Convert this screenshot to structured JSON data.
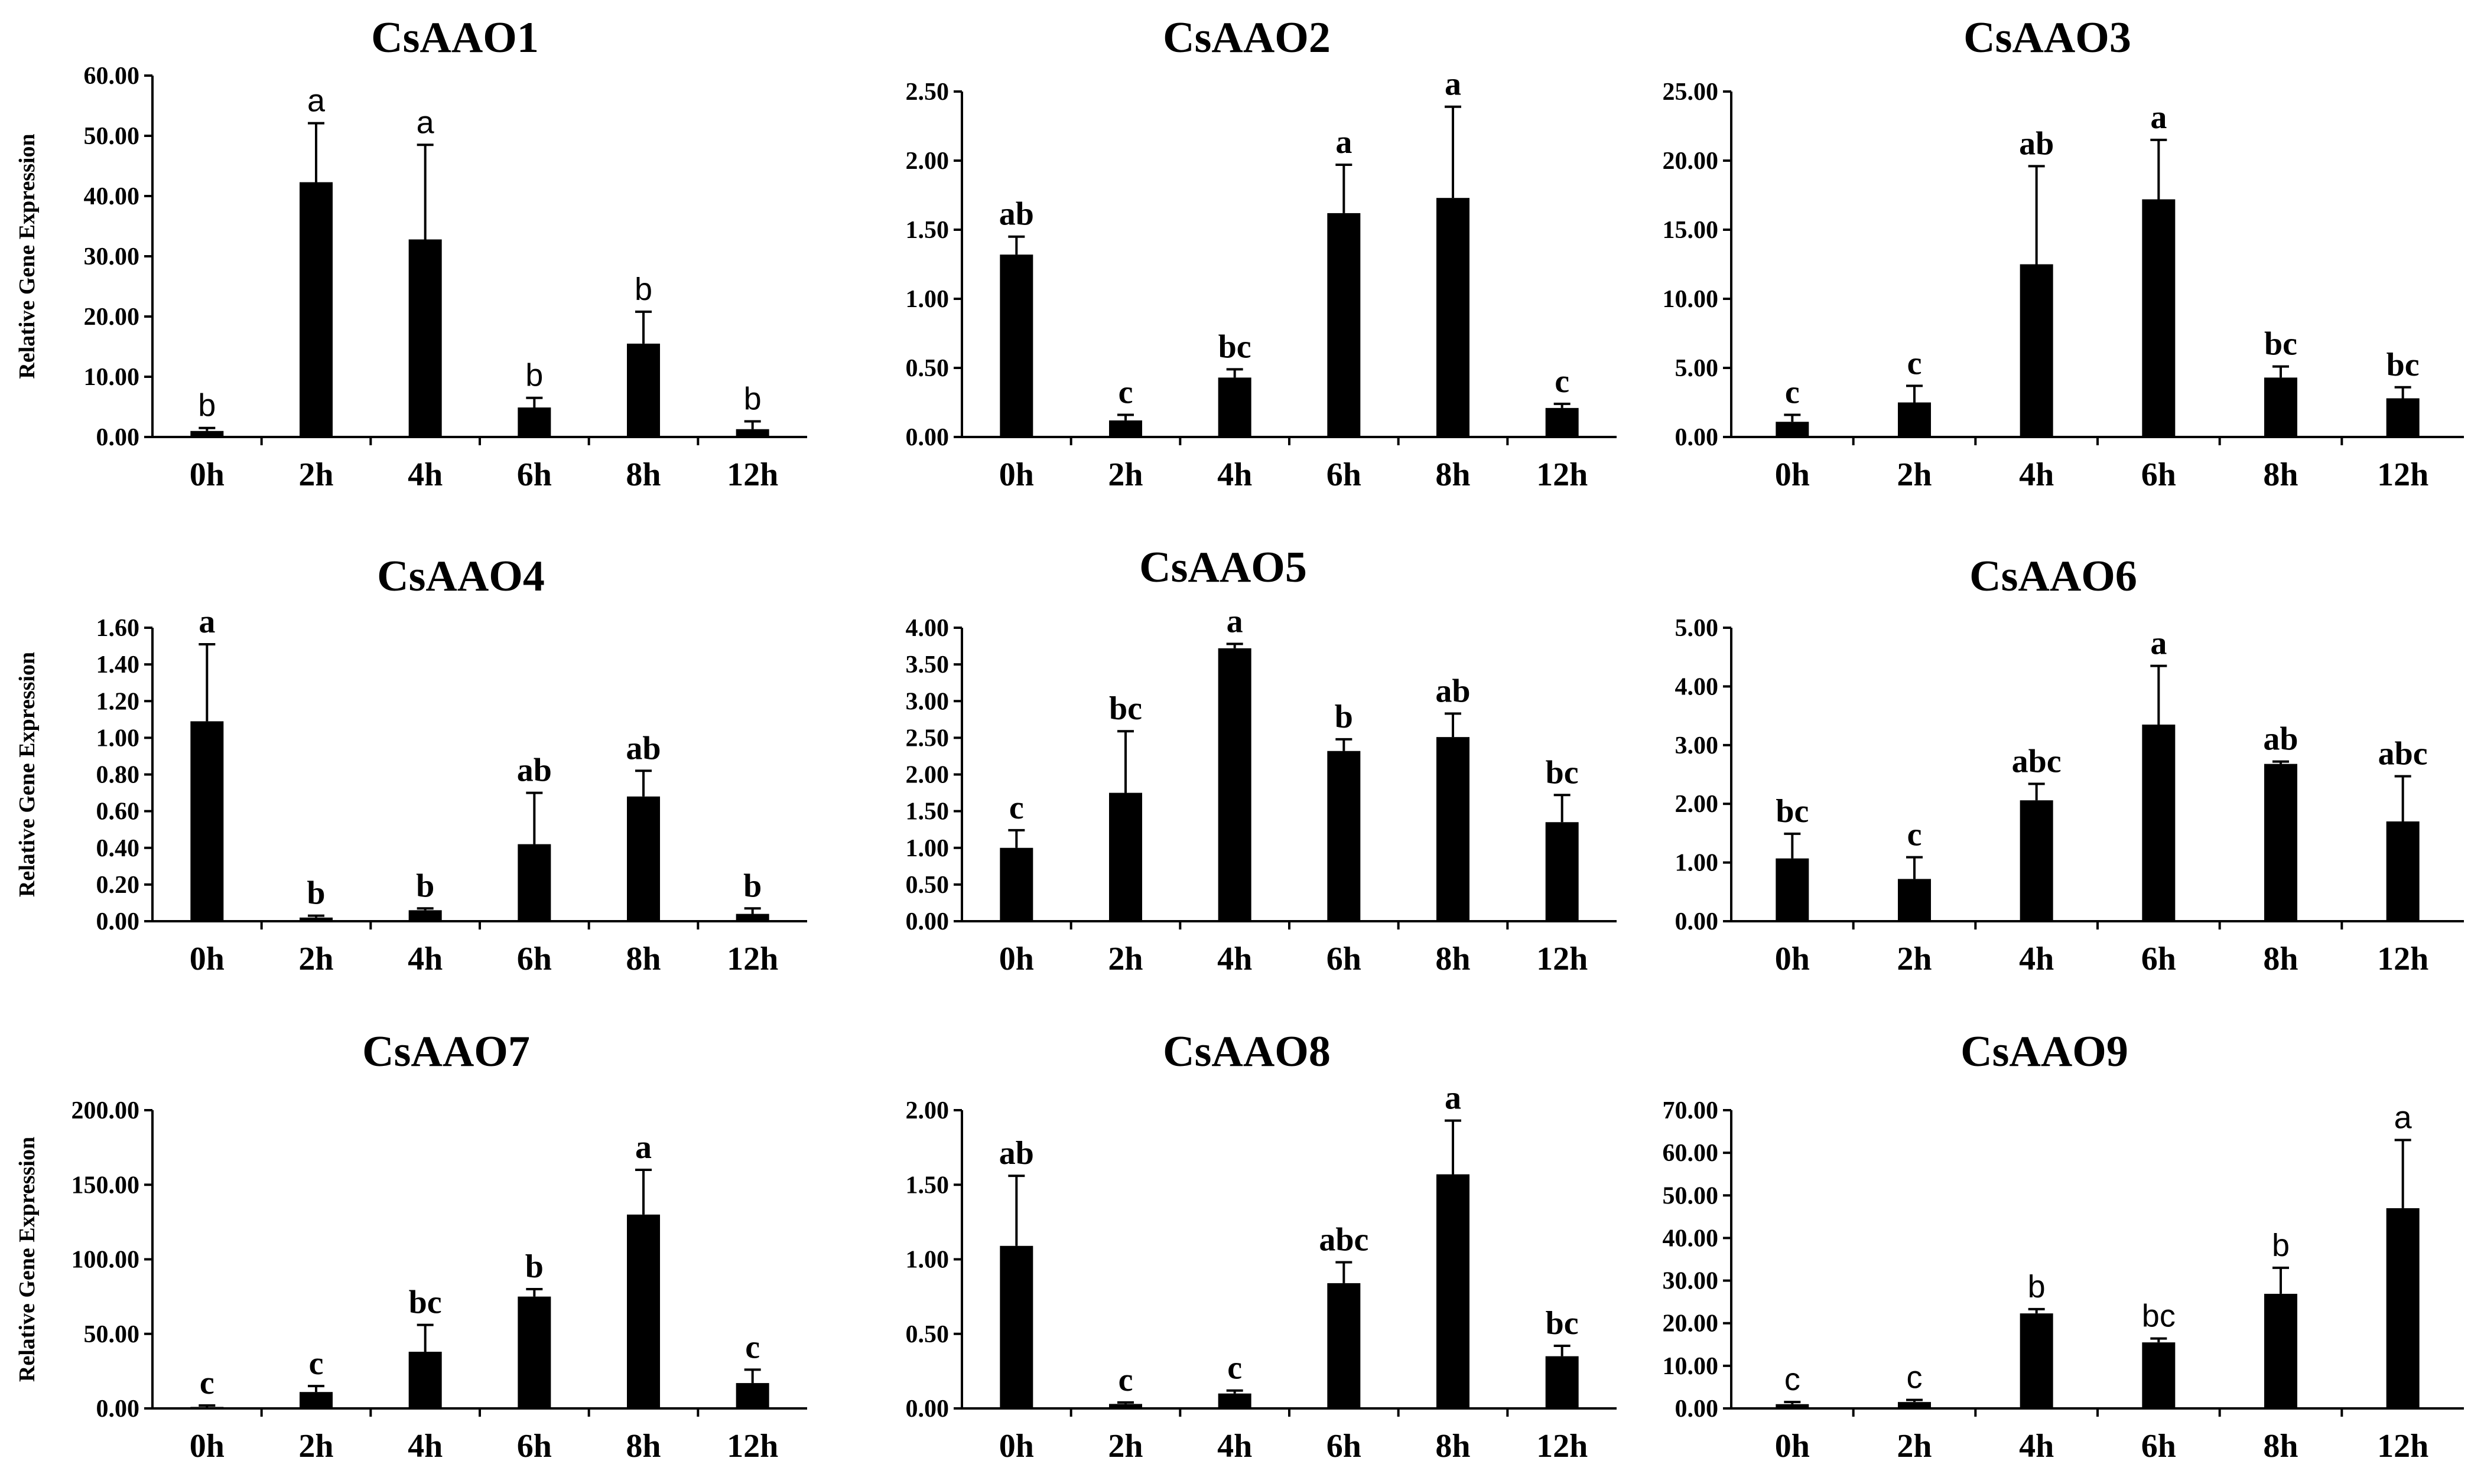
{
  "chart_data": [
    {
      "type": "bar",
      "title": "CsAAO1",
      "ylabel": "Relative Gene Expression",
      "xlabel": "",
      "categories": [
        "0h",
        "2h",
        "4h",
        "6h",
        "8h",
        "12h"
      ],
      "values": [
        1.0,
        42.3,
        32.8,
        4.9,
        15.5,
        1.3
      ],
      "errors": [
        0.5,
        9.8,
        15.7,
        1.6,
        5.3,
        1.3
      ],
      "significance": [
        "b",
        "a",
        "a",
        "b",
        "b",
        "b"
      ],
      "ylim": [
        0,
        60
      ],
      "yticks": [
        "0.00",
        "10.00",
        "20.00",
        "30.00",
        "40.00",
        "50.00",
        "60.00"
      ]
    },
    {
      "type": "bar",
      "title": "CsAAO2",
      "ylabel": "",
      "xlabel": "",
      "categories": [
        "0h",
        "2h",
        "4h",
        "6h",
        "8h",
        "12h"
      ],
      "values": [
        1.32,
        0.12,
        0.43,
        1.62,
        1.73,
        0.21
      ],
      "errors": [
        0.13,
        0.04,
        0.06,
        0.35,
        0.66,
        0.03
      ],
      "significance": [
        "ab",
        "c",
        "bc",
        "a",
        "a",
        "c"
      ],
      "ylim": [
        0,
        2.5
      ],
      "yticks": [
        "0.00",
        "0.50",
        "1.00",
        "1.50",
        "2.00",
        "2.50"
      ]
    },
    {
      "type": "bar",
      "title": "CsAAO3",
      "ylabel": "",
      "xlabel": "",
      "categories": [
        "0h",
        "2h",
        "4h",
        "6h",
        "8h",
        "12h"
      ],
      "values": [
        1.1,
        2.5,
        12.5,
        17.2,
        4.3,
        2.8
      ],
      "errors": [
        0.5,
        1.2,
        7.1,
        4.3,
        0.8,
        0.8
      ],
      "significance": [
        "c",
        "c",
        "ab",
        "a",
        "bc",
        "bc"
      ],
      "ylim": [
        0,
        25
      ],
      "yticks": [
        "0.00",
        "5.00",
        "10.00",
        "15.00",
        "20.00",
        "25.00"
      ]
    },
    {
      "type": "bar",
      "title": "CsAAO4",
      "ylabel": "Relative Gene Expression",
      "xlabel": "",
      "categories": [
        "0h",
        "2h",
        "4h",
        "6h",
        "8h",
        "12h"
      ],
      "values": [
        1.09,
        0.02,
        0.06,
        0.42,
        0.68,
        0.04
      ],
      "errors": [
        0.42,
        0.01,
        0.01,
        0.28,
        0.14,
        0.03
      ],
      "significance": [
        "a",
        "b",
        "b",
        "ab",
        "ab",
        "b"
      ],
      "ylim": [
        0,
        1.6
      ],
      "yticks": [
        "0.00",
        "0.20",
        "0.40",
        "0.60",
        "0.80",
        "1.00",
        "1.20",
        "1.40",
        "1.60"
      ]
    },
    {
      "type": "bar",
      "title": "CsAAO5",
      "ylabel": "",
      "xlabel": "",
      "categories": [
        "0h",
        "2h",
        "4h",
        "6h",
        "8h",
        "12h"
      ],
      "values": [
        1.0,
        1.75,
        3.72,
        2.32,
        2.51,
        1.35
      ],
      "errors": [
        0.24,
        0.84,
        0.06,
        0.16,
        0.32,
        0.37
      ],
      "significance": [
        "c",
        "bc",
        "a",
        "b",
        "ab",
        "bc"
      ],
      "ylim": [
        0,
        4
      ],
      "yticks": [
        "0.00",
        "0.50",
        "1.00",
        "1.50",
        "2.00",
        "2.50",
        "3.00",
        "3.50",
        "4.00"
      ]
    },
    {
      "type": "bar",
      "title": "CsAAO6",
      "ylabel": "",
      "xlabel": "",
      "categories": [
        "0h",
        "2h",
        "4h",
        "6h",
        "8h",
        "12h"
      ],
      "values": [
        1.07,
        0.72,
        2.06,
        3.35,
        2.68,
        1.7
      ],
      "errors": [
        0.42,
        0.37,
        0.28,
        1.0,
        0.04,
        0.77
      ],
      "significance": [
        "bc",
        "c",
        "abc",
        "a",
        "ab",
        "abc"
      ],
      "ylim": [
        0,
        5
      ],
      "yticks": [
        "0.00",
        "1.00",
        "2.00",
        "3.00",
        "4.00",
        "5.00"
      ]
    },
    {
      "type": "bar",
      "title": "CsAAO7",
      "ylabel": "Relative Gene Expression",
      "xlabel": "",
      "categories": [
        "0h",
        "2h",
        "4h",
        "6h",
        "8h",
        "12h"
      ],
      "values": [
        1.0,
        11.0,
        38.0,
        75.0,
        130.0,
        17.0
      ],
      "errors": [
        1.0,
        4.0,
        18.0,
        5.0,
        30.0,
        9.0
      ],
      "significance": [
        "c",
        "c",
        "bc",
        "b",
        "a",
        "c"
      ],
      "ylim": [
        0,
        200
      ],
      "yticks": [
        "0.00",
        "50.00",
        "100.00",
        "150.00",
        "200.00"
      ]
    },
    {
      "type": "bar",
      "title": "CsAAO8",
      "ylabel": "",
      "xlabel": "",
      "categories": [
        "0h",
        "2h",
        "4h",
        "6h",
        "8h",
        "12h"
      ],
      "values": [
        1.09,
        0.03,
        0.1,
        0.84,
        1.57,
        0.35
      ],
      "errors": [
        0.47,
        0.01,
        0.02,
        0.14,
        0.36,
        0.07
      ],
      "significance": [
        "ab",
        "c",
        "c",
        "abc",
        "a",
        "bc"
      ],
      "ylim": [
        0,
        2
      ],
      "yticks": [
        "0.00",
        "0.50",
        "1.00",
        "1.50",
        "2.00"
      ]
    },
    {
      "type": "bar",
      "title": "CsAAO9",
      "ylabel": "",
      "xlabel": "",
      "categories": [
        "0h",
        "2h",
        "4h",
        "6h",
        "8h",
        "12h"
      ],
      "values": [
        1.0,
        1.5,
        22.3,
        15.5,
        26.9,
        47.0
      ],
      "errors": [
        0.5,
        0.5,
        1.0,
        0.9,
        6.1,
        16.0
      ],
      "significance": [
        "c",
        "c",
        "b",
        "bc",
        "b",
        "a"
      ],
      "ylim": [
        0,
        70
      ],
      "yticks": [
        "0.00",
        "10.00",
        "20.00",
        "30.00",
        "40.00",
        "50.00",
        "60.00",
        "70.00"
      ]
    }
  ]
}
